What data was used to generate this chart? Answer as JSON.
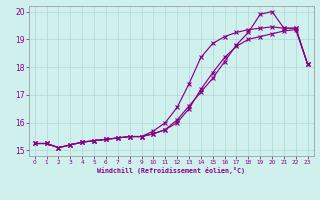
{
  "xlabel": "Windchill (Refroidissement éolien,°C)",
  "xlim": [
    -0.5,
    23.5
  ],
  "ylim": [
    14.8,
    20.2
  ],
  "xticks": [
    0,
    1,
    2,
    3,
    4,
    5,
    6,
    7,
    8,
    9,
    10,
    11,
    12,
    13,
    14,
    15,
    16,
    17,
    18,
    19,
    20,
    21,
    22,
    23
  ],
  "yticks": [
    15,
    16,
    17,
    18,
    19,
    20
  ],
  "bg_color": "#cff0ec",
  "grid_color": "#aed8d4",
  "line_color": "#880088",
  "line1_x": [
    0,
    1,
    2,
    3,
    4,
    5,
    6,
    7,
    8,
    9,
    10,
    11,
    12,
    13,
    14,
    15,
    16,
    17,
    18,
    19,
    20,
    21,
    22,
    23
  ],
  "line1_y": [
    15.25,
    15.25,
    15.1,
    15.2,
    15.3,
    15.35,
    15.4,
    15.45,
    15.5,
    15.5,
    15.6,
    15.75,
    16.1,
    16.6,
    17.1,
    17.6,
    18.2,
    18.8,
    19.25,
    19.9,
    20.0,
    19.4,
    19.4,
    18.1
  ],
  "line2_x": [
    0,
    1,
    2,
    3,
    4,
    5,
    6,
    7,
    8,
    9,
    10,
    11,
    12,
    13,
    14,
    15,
    16,
    17,
    18,
    19,
    20,
    21,
    22,
    23
  ],
  "line2_y": [
    15.25,
    15.25,
    15.1,
    15.2,
    15.3,
    15.35,
    15.4,
    15.45,
    15.5,
    15.5,
    15.7,
    16.0,
    16.55,
    17.4,
    18.35,
    18.85,
    19.1,
    19.25,
    19.35,
    19.4,
    19.45,
    19.4,
    19.4,
    18.1
  ],
  "line3_x": [
    0,
    1,
    2,
    3,
    4,
    5,
    6,
    7,
    8,
    9,
    10,
    11,
    12,
    13,
    14,
    15,
    16,
    17,
    18,
    19,
    20,
    21,
    22,
    23
  ],
  "line3_y": [
    15.25,
    15.25,
    15.1,
    15.2,
    15.3,
    15.35,
    15.4,
    15.45,
    15.5,
    15.5,
    15.6,
    15.75,
    16.0,
    16.5,
    17.2,
    17.8,
    18.35,
    18.75,
    19.0,
    19.1,
    19.2,
    19.3,
    19.35,
    18.1
  ]
}
